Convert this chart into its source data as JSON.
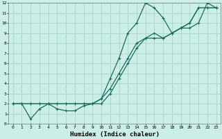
{
  "title": "",
  "xlabel": "Humidex (Indice chaleur)",
  "bg_color": "#cceee8",
  "grid_color": "#aad4cc",
  "line_color": "#1a6b5a",
  "xlim": [
    -0.5,
    23.5
  ],
  "ylim": [
    0,
    12
  ],
  "xticks": [
    0,
    1,
    2,
    3,
    4,
    5,
    6,
    7,
    8,
    9,
    10,
    11,
    12,
    13,
    14,
    15,
    16,
    17,
    18,
    19,
    20,
    21,
    22,
    23
  ],
  "yticks": [
    0,
    1,
    2,
    3,
    4,
    5,
    6,
    7,
    8,
    9,
    10,
    11,
    12
  ],
  "line1_x": [
    0,
    1,
    2,
    3,
    4,
    5,
    6,
    7,
    8,
    9,
    10,
    11,
    12,
    13,
    14,
    15,
    16,
    17,
    18,
    19,
    20,
    21,
    22,
    23
  ],
  "line1_y": [
    2,
    2,
    2,
    2,
    2,
    2,
    2,
    2,
    2,
    2,
    2.5,
    3.5,
    5,
    6.5,
    8,
    8.5,
    9,
    8.5,
    9,
    9.5,
    10,
    11.5,
    11.5,
    11.5
  ],
  "line2_x": [
    0,
    1,
    2,
    3,
    4,
    5,
    6,
    7,
    8,
    9,
    10,
    11,
    12,
    13,
    14,
    15,
    16,
    17,
    18,
    19,
    20,
    21,
    22,
    23
  ],
  "line2_y": [
    2,
    2,
    0.5,
    1.5,
    2,
    1.5,
    1.3,
    1.3,
    1.8,
    2,
    2.5,
    4.5,
    6.5,
    9,
    10,
    12,
    11.5,
    10.5,
    9,
    9.5,
    9.5,
    10,
    12,
    11.5
  ],
  "line3_x": [
    0,
    1,
    2,
    3,
    4,
    5,
    6,
    7,
    8,
    9,
    10,
    11,
    12,
    13,
    14,
    15,
    16,
    17,
    18,
    19,
    20,
    21,
    22,
    23
  ],
  "line3_y": [
    2,
    2,
    2,
    2,
    2,
    2,
    2,
    2,
    2,
    2,
    2,
    3,
    4.5,
    6,
    7.5,
    8.5,
    8.5,
    8.5,
    9,
    9.5,
    10,
    11.5,
    11.5,
    11.5
  ],
  "tick_fontsize": 4.5,
  "xlabel_fontsize": 6.5
}
